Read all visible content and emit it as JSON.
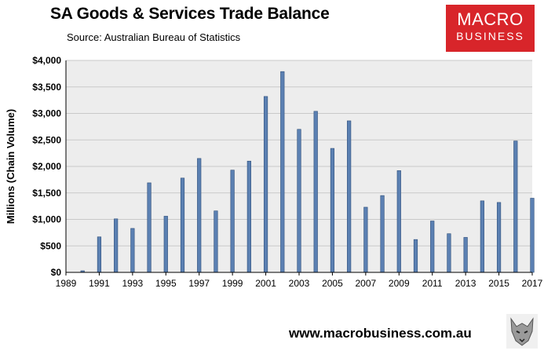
{
  "header": {
    "title": "SA Goods & Services Trade Balance",
    "source": "Source:  Australian Bureau of Statistics"
  },
  "logo": {
    "line1": "MACRO",
    "line2": "BUSINESS",
    "color": "#d8252a"
  },
  "footer": {
    "url": "www.macrobusiness.com.au"
  },
  "colors": {
    "bar": "#5b80b2",
    "bar_edge": "#2f4f7a",
    "plot_bg": "#ededed",
    "grid": "#c9c9c9"
  },
  "chart_data": {
    "type": "bar",
    "title": "SA Goods & Services Trade Balance",
    "ylabel": "Millions (Chain Volume)",
    "xlabel": "",
    "ylim": [
      0,
      4000
    ],
    "y_ticks": [
      "$0",
      "$500",
      "$1,000",
      "$1,500",
      "$2,000",
      "$2,500",
      "$3,000",
      "$3,500",
      "$4,000"
    ],
    "x_ticks": [
      "1989",
      "1991",
      "1993",
      "1995",
      "1997",
      "1999",
      "2001",
      "2003",
      "2005",
      "2007",
      "2009",
      "2011",
      "2013",
      "2015",
      "2017"
    ],
    "x_range": [
      1989,
      2017
    ],
    "grid": true,
    "legend": "none",
    "x": [
      1990,
      1991,
      1992,
      1993,
      1994,
      1995,
      1996,
      1997,
      1998,
      1999,
      2000,
      2001,
      2002,
      2003,
      2004,
      2005,
      2006,
      2007,
      2008,
      2009,
      2010,
      2011,
      2012,
      2013,
      2014,
      2015,
      2016,
      2017
    ],
    "values": [
      30,
      670,
      1010,
      830,
      1690,
      1060,
      1780,
      2150,
      1160,
      1930,
      2100,
      3320,
      3790,
      2700,
      3040,
      2340,
      2860,
      1230,
      1450,
      1920,
      620,
      970,
      730,
      660,
      1350,
      1320,
      2480,
      1400
    ]
  }
}
